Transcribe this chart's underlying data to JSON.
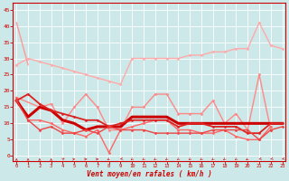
{
  "bg_color": "#cce8e8",
  "grid_color": "#aad4d4",
  "xlabel": "Vent moyen/en rafales ( km/h )",
  "xlabel_color": "#cc0000",
  "tick_color": "#cc0000",
  "x_ticks": [
    0,
    1,
    2,
    3,
    4,
    5,
    6,
    7,
    8,
    9,
    10,
    11,
    12,
    13,
    14,
    15,
    16,
    17,
    18,
    19,
    20,
    21,
    22,
    23
  ],
  "ylim": [
    -1.5,
    47
  ],
  "xlim": [
    -0.3,
    23.3
  ],
  "yticks": [
    0,
    5,
    10,
    15,
    20,
    25,
    30,
    35,
    40,
    45
  ],
  "lines": [
    {
      "x": [
        0,
        1
      ],
      "y": [
        41,
        28
      ],
      "color": "#ff9999",
      "lw": 1.0,
      "marker": null,
      "ms": 0
    },
    {
      "x": [
        0,
        1,
        2,
        3,
        4,
        5,
        6,
        7,
        8,
        9,
        10,
        11,
        12,
        13,
        14,
        15,
        16,
        17,
        18,
        19,
        20,
        21,
        22,
        23
      ],
      "y": [
        28,
        30,
        29,
        28,
        27,
        26,
        25,
        24,
        23,
        22,
        30,
        30,
        30,
        30,
        30,
        31,
        31,
        32,
        32,
        33,
        33,
        41,
        34,
        33
      ],
      "color": "#ffaaaa",
      "lw": 1.0,
      "marker": "D",
      "ms": 1.5
    },
    {
      "x": [
        0,
        2,
        3,
        4,
        5,
        6,
        7,
        8,
        9,
        10,
        11,
        12,
        13,
        14,
        15,
        16,
        17,
        18,
        19,
        20,
        21,
        22
      ],
      "y": [
        18,
        15,
        16,
        10,
        15,
        19,
        15,
        8,
        8,
        15,
        15,
        19,
        19,
        13,
        13,
        13,
        17,
        10,
        13,
        8,
        25,
        8
      ],
      "color": "#ff8888",
      "lw": 1.0,
      "marker": "D",
      "ms": 1.5
    },
    {
      "x": [
        0,
        1,
        2,
        3,
        4,
        5,
        6,
        7,
        8,
        9,
        10,
        11,
        12,
        13,
        14,
        15,
        16,
        17,
        18,
        19,
        20,
        21,
        22
      ],
      "y": [
        18,
        11,
        11,
        10,
        8,
        7,
        6,
        8,
        1,
        8,
        9,
        10,
        11,
        11,
        8,
        8,
        7,
        7,
        8,
        6,
        5,
        5,
        9
      ],
      "color": "#ff6666",
      "lw": 1.0,
      "marker": "D",
      "ms": 1.5
    },
    {
      "x": [
        0,
        1,
        2,
        3,
        4,
        5,
        6,
        7,
        8,
        9,
        10,
        11,
        12,
        13,
        14,
        15,
        16,
        17,
        18,
        19,
        20,
        21,
        22,
        23
      ],
      "y": [
        17,
        12,
        15,
        14,
        11,
        10,
        8,
        9,
        9,
        9,
        12,
        12,
        12,
        12,
        10,
        10,
        10,
        10,
        10,
        10,
        10,
        10,
        10,
        10
      ],
      "color": "#cc0000",
      "lw": 2.2,
      "marker": null,
      "ms": 0
    },
    {
      "x": [
        0,
        1,
        2,
        3,
        4,
        5,
        6,
        7,
        8,
        9,
        10,
        11,
        12,
        13,
        14,
        15,
        16,
        17,
        18,
        19,
        20,
        21,
        22,
        23
      ],
      "y": [
        17,
        19,
        16,
        14,
        13,
        12,
        11,
        11,
        9,
        10,
        11,
        11,
        11,
        11,
        9,
        10,
        10,
        9,
        9,
        9,
        7,
        7,
        10,
        10
      ],
      "color": "#dd2222",
      "lw": 1.3,
      "marker": "D",
      "ms": 1.5
    },
    {
      "x": [
        0,
        1,
        2,
        3,
        4,
        5,
        6,
        7,
        8,
        9,
        10,
        11,
        12,
        13,
        14,
        15,
        16,
        17,
        18,
        19,
        20,
        21,
        22,
        23
      ],
      "y": [
        17,
        11,
        8,
        9,
        7,
        7,
        8,
        7,
        9,
        8,
        8,
        8,
        7,
        7,
        7,
        7,
        7,
        8,
        8,
        8,
        8,
        5,
        8,
        9
      ],
      "color": "#ee4444",
      "lw": 1.0,
      "marker": "D",
      "ms": 1.5
    }
  ],
  "arrow_angles": [
    0,
    0,
    0,
    0,
    30,
    60,
    90,
    90,
    210,
    225,
    200,
    200,
    200,
    200,
    200,
    200,
    200,
    200,
    200,
    200,
    210,
    225,
    225,
    225
  ]
}
